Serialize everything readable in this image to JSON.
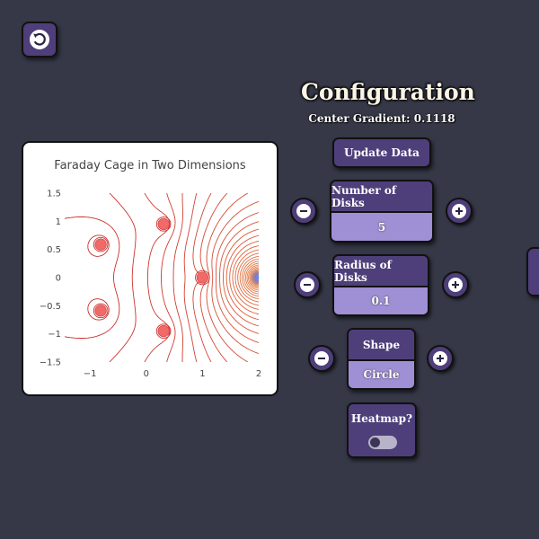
{
  "nav": {
    "back_icon": "undo-arrow-icon"
  },
  "config": {
    "title": "Configuration",
    "center_gradient_label": "Center Gradient: 0.1118",
    "update_button": "Update Data",
    "number_of_disks": {
      "label": "Number of Disks",
      "value": "5"
    },
    "radius_of_disks": {
      "label": "Radius of Disks",
      "value": "0.1"
    },
    "shape": {
      "label": "Shape",
      "value": "Circle"
    },
    "heatmap": {
      "label": "Heatmap?",
      "enabled": false
    }
  },
  "icons": {
    "decrement": "minus-icon",
    "increment": "plus-icon"
  },
  "colors": {
    "panel": "#4e3f7a",
    "value_bg": "#9f8fd4",
    "background": "#363847",
    "contour": "#c8302c",
    "disk_fill": "#f06a6a",
    "source_glow": "#3b62ff"
  },
  "chart_data": {
    "type": "contour",
    "title": "Faraday Cage in Two Dimensions",
    "xlabel": "",
    "ylabel": "",
    "x_ticks": [
      "−1",
      "0",
      "1",
      "2"
    ],
    "y_ticks": [
      "1.5",
      "1",
      "0.5",
      "0",
      "−0.5",
      "−1",
      "−1.5"
    ],
    "xlim": [
      -1.45,
      2.0
    ],
    "ylim": [
      -1.5,
      1.5
    ],
    "disks": [
      {
        "x": 1.0,
        "y": 0.0
      },
      {
        "x": 0.309,
        "y": 0.951
      },
      {
        "x": -0.809,
        "y": 0.588
      },
      {
        "x": -0.809,
        "y": -0.588
      },
      {
        "x": 0.309,
        "y": -0.951
      }
    ],
    "disk_radius": 0.1,
    "source": {
      "x": 2.0,
      "y": 0.0
    }
  }
}
